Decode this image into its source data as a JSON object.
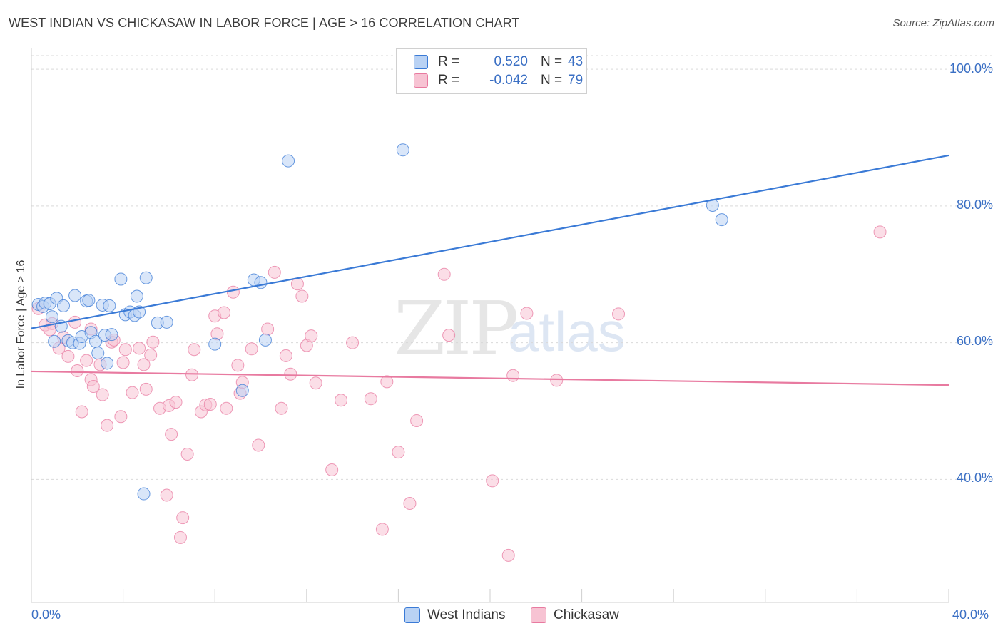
{
  "title": "WEST INDIAN VS CHICKASAW IN LABOR FORCE | AGE > 16 CORRELATION CHART",
  "source": "Source: ZipAtlas.com",
  "watermark": {
    "zip": "ZIP",
    "atlas": "atlas"
  },
  "colors": {
    "blue": "#3a7ad6",
    "blue_fill": "#b9d2f4",
    "pink": "#e87aa0",
    "pink_fill": "#f7c3d3",
    "tick_text": "#3a6fc4",
    "grid": "#d9d9d9"
  },
  "legend": {
    "rows": [
      {
        "r_label": "R =",
        "r_value": "0.520",
        "n_label": "N =",
        "n_value": "43",
        "series": "blue"
      },
      {
        "r_label": "R =",
        "r_value": "-0.042",
        "n_label": "N =",
        "n_value": "79",
        "series": "pink"
      }
    ]
  },
  "bottom_legend": [
    "West Indians",
    "Chickasaw"
  ],
  "chart_data": {
    "type": "scatter",
    "title": "WEST INDIAN VS CHICKASAW IN LABOR FORCE | AGE > 16 CORRELATION CHART",
    "xlabel": "",
    "ylabel": "In Labor Force | Age > 16",
    "x_tick_labels": [
      "0.0%",
      "40.0%"
    ],
    "y_tick_labels": [
      "100.0%",
      "80.0%",
      "60.0%",
      "40.0%"
    ],
    "xlim": [
      0,
      40
    ],
    "ylim": [
      22,
      102
    ],
    "grid": "horizontal dashed",
    "legend_position": "top-center",
    "series": [
      {
        "name": "West Indians",
        "color": "#3a7ad6",
        "R": 0.52,
        "N": 43,
        "trend": {
          "x": [
            0,
            40
          ],
          "y": [
            62.1,
            87.4
          ]
        },
        "points": [
          [
            0.3,
            65.6
          ],
          [
            0.5,
            65.3
          ],
          [
            0.6,
            65.8
          ],
          [
            0.8,
            65.7
          ],
          [
            0.9,
            63.8
          ],
          [
            1.1,
            66.5
          ],
          [
            1.3,
            62.4
          ],
          [
            1.4,
            65.4
          ],
          [
            1.6,
            60.3
          ],
          [
            1.8,
            60.0
          ],
          [
            1.9,
            66.9
          ],
          [
            2.1,
            59.9
          ],
          [
            2.2,
            60.9
          ],
          [
            2.4,
            66.1
          ],
          [
            2.5,
            66.2
          ],
          [
            2.6,
            61.5
          ],
          [
            2.8,
            60.2
          ],
          [
            2.9,
            58.5
          ],
          [
            3.1,
            65.5
          ],
          [
            3.2,
            61.1
          ],
          [
            3.4,
            65.4
          ],
          [
            3.5,
            61.2
          ],
          [
            3.9,
            69.3
          ],
          [
            4.1,
            64.1
          ],
          [
            4.3,
            64.5
          ],
          [
            4.5,
            64.0
          ],
          [
            4.6,
            66.8
          ],
          [
            4.7,
            64.5
          ],
          [
            5.0,
            69.5
          ],
          [
            5.5,
            62.9
          ],
          [
            5.9,
            63.0
          ],
          [
            8.0,
            59.8
          ],
          [
            9.2,
            53.0
          ],
          [
            9.7,
            69.2
          ],
          [
            10.0,
            68.8
          ],
          [
            10.2,
            60.4
          ],
          [
            11.2,
            86.6
          ],
          [
            16.2,
            88.2
          ],
          [
            4.9,
            37.9
          ],
          [
            29.7,
            80.1
          ],
          [
            30.1,
            78.0
          ],
          [
            3.3,
            57.0
          ],
          [
            1.0,
            60.2
          ]
        ]
      },
      {
        "name": "Chickasaw",
        "color": "#e87aa0",
        "R": -0.042,
        "N": 79,
        "trend": {
          "x": [
            0,
            40
          ],
          "y": [
            55.8,
            53.8
          ]
        },
        "points": [
          [
            0.3,
            65.0
          ],
          [
            0.6,
            62.6
          ],
          [
            0.9,
            62.8
          ],
          [
            1.2,
            59.2
          ],
          [
            1.4,
            60.8
          ],
          [
            1.6,
            58.0
          ],
          [
            1.9,
            63.0
          ],
          [
            2.0,
            55.9
          ],
          [
            2.2,
            49.9
          ],
          [
            2.4,
            57.4
          ],
          [
            2.6,
            54.6
          ],
          [
            2.7,
            53.6
          ],
          [
            2.6,
            62.0
          ],
          [
            3.0,
            56.8
          ],
          [
            3.1,
            52.4
          ],
          [
            3.3,
            47.9
          ],
          [
            3.5,
            60.1
          ],
          [
            3.6,
            60.4
          ],
          [
            3.9,
            49.2
          ],
          [
            4.0,
            57.1
          ],
          [
            4.1,
            59.0
          ],
          [
            4.4,
            52.7
          ],
          [
            4.7,
            59.2
          ],
          [
            4.9,
            56.8
          ],
          [
            5.0,
            53.2
          ],
          [
            5.2,
            58.2
          ],
          [
            5.3,
            60.1
          ],
          [
            5.6,
            50.4
          ],
          [
            5.9,
            37.7
          ],
          [
            6.0,
            50.8
          ],
          [
            6.1,
            46.6
          ],
          [
            6.3,
            51.3
          ],
          [
            6.6,
            34.4
          ],
          [
            6.8,
            43.7
          ],
          [
            7.0,
            55.3
          ],
          [
            7.1,
            59.0
          ],
          [
            7.4,
            49.9
          ],
          [
            7.6,
            50.9
          ],
          [
            7.8,
            51.0
          ],
          [
            8.0,
            63.9
          ],
          [
            8.1,
            61.3
          ],
          [
            8.4,
            64.4
          ],
          [
            8.5,
            50.4
          ],
          [
            8.8,
            67.4
          ],
          [
            9.0,
            56.7
          ],
          [
            9.1,
            52.6
          ],
          [
            9.2,
            54.2
          ],
          [
            9.6,
            59.1
          ],
          [
            9.9,
            45.0
          ],
          [
            10.3,
            62.0
          ],
          [
            10.6,
            70.3
          ],
          [
            10.9,
            50.4
          ],
          [
            11.1,
            58.1
          ],
          [
            11.3,
            55.4
          ],
          [
            11.6,
            68.6
          ],
          [
            11.8,
            66.8
          ],
          [
            12.0,
            59.6
          ],
          [
            12.2,
            61.0
          ],
          [
            12.4,
            54.1
          ],
          [
            13.1,
            41.4
          ],
          [
            13.5,
            51.6
          ],
          [
            14.0,
            60.0
          ],
          [
            14.8,
            51.8
          ],
          [
            15.3,
            32.7
          ],
          [
            15.5,
            54.3
          ],
          [
            16.0,
            44.0
          ],
          [
            16.5,
            36.5
          ],
          [
            16.8,
            48.6
          ],
          [
            18.0,
            70.0
          ],
          [
            18.2,
            61.1
          ],
          [
            20.1,
            39.8
          ],
          [
            20.8,
            28.9
          ],
          [
            21.0,
            55.2
          ],
          [
            21.6,
            64.3
          ],
          [
            22.9,
            54.5
          ],
          [
            25.6,
            64.2
          ],
          [
            37.0,
            76.2
          ],
          [
            0.8,
            61.9
          ],
          [
            6.5,
            31.5
          ]
        ]
      }
    ]
  }
}
